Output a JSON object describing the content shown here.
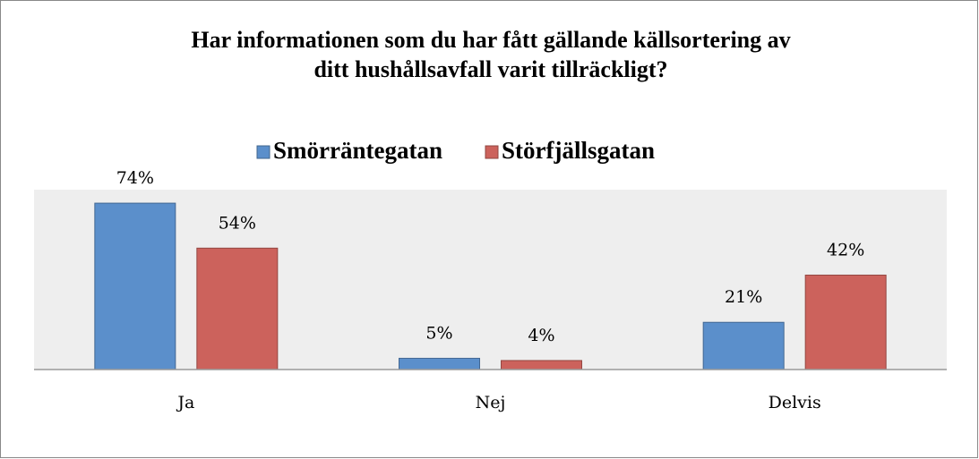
{
  "chart_data": {
    "type": "bar",
    "title": [
      "Har informationen som du har fått gällande källsortering av",
      "ditt hushållsavfall varit tillräckligt?"
    ],
    "categories": [
      "Ja",
      "Nej",
      "Delvis"
    ],
    "series": [
      {
        "name": "Smörräntegatan",
        "color": "#5b8fcb",
        "values": [
          74,
          5,
          21
        ],
        "value_labels": [
          "74%",
          "5%",
          "21%"
        ]
      },
      {
        "name": "Störfjällsgatan",
        "color": "#cc625c",
        "values": [
          54,
          4,
          42
        ],
        "value_labels": [
          "54%",
          "4%",
          "42%"
        ]
      }
    ],
    "ylim": [
      0,
      80
    ],
    "legend": "top"
  }
}
